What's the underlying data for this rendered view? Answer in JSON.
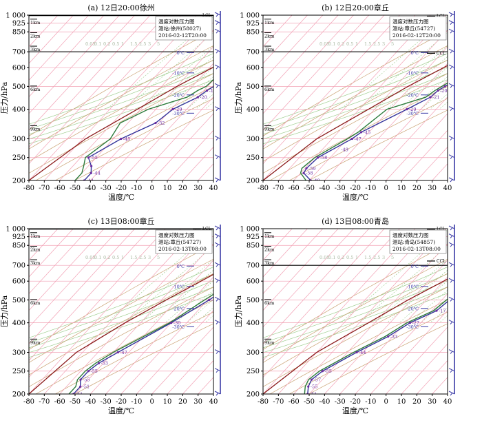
{
  "figure": {
    "ylabel": "压力/hPa",
    "xlabel": "温度/℃"
  },
  "axes": {
    "x_ticks": [
      -80,
      -70,
      -60,
      -50,
      -40,
      -30,
      -20,
      -10,
      0,
      10,
      20,
      30,
      40
    ],
    "y_ticks": [
      200,
      250,
      300,
      400,
      500,
      600,
      700,
      850,
      925,
      1000
    ],
    "y_tick_labels": [
      "200",
      "250",
      "300",
      "400",
      "500",
      "600",
      "700",
      "850",
      "925",
      "1 000"
    ],
    "xlim": [
      -80,
      40
    ],
    "ylim": [
      1000,
      200
    ],
    "y_scale": "log",
    "grid": true,
    "height_marks": [
      {
        "label": "9km",
        "p": 330
      },
      {
        "label": "6km",
        "p": 485
      },
      {
        "label": "3km",
        "p": 715
      },
      {
        "label": "2km",
        "p": 815
      },
      {
        "label": "1km",
        "p": 930
      }
    ],
    "isotherm_marks": [
      {
        "label": "-30℃",
        "p": 385
      },
      {
        "label": "-20℃",
        "p": 460
      },
      {
        "label": "-10℃",
        "p": 570
      },
      {
        "label": "0℃",
        "p": 695
      }
    ],
    "mixing_ratio_labels": [
      "0.05",
      "0.1",
      "0.2",
      "0.5",
      "1",
      "1.5",
      "2.5",
      "3",
      "5"
    ],
    "colors": {
      "isobar": "#f2a0b4",
      "isotherm": "#f2a0b4",
      "dry_adiabat": "#c9a071",
      "moist_adiabat": "#9ccc8c",
      "mixing_ratio": "#9ccc8c",
      "temperature": "#33339a",
      "dewpoint": "#2b7a3a",
      "parcel": "#8b1a1a",
      "wind": "#3a3aa6",
      "marker": "#6a2aa0",
      "band": "#fbd3da"
    }
  },
  "chart_data": [
    {
      "id": "a",
      "type": "line",
      "title": "(a) 12日20:00徐州",
      "legend_lines": [
        "温度对数压力图",
        "测站:徐州(58027)",
        "2016-02-12T20:00"
      ],
      "bands": [
        [
          410,
          520
        ],
        [
          580,
          940
        ]
      ],
      "line_pressures": [
        700,
        995
      ],
      "ccl_p": 980,
      "lcl_p": 998,
      "temperature": {
        "p": [
          995,
          980,
          925,
          850,
          700,
          600,
          560,
          500,
          480,
          450,
          400,
          350,
          300,
          250,
          230,
          215,
          200
        ],
        "t": [
          8,
          12,
          13,
          10,
          -1,
          -8,
          -10,
          -16,
          -18,
          -20,
          -29,
          -32,
          -45,
          -55,
          -48,
          -44,
          -44
        ]
      },
      "dewpoint": {
        "p": [
          995,
          980,
          925,
          850,
          700,
          600,
          560,
          500,
          480,
          450,
          400,
          350,
          300,
          250,
          230,
          215,
          200
        ],
        "td": [
          7,
          8,
          10,
          7,
          -4,
          -12,
          -20,
          -21,
          -24,
          -27,
          -45,
          -55,
          -52,
          -57,
          -53,
          -50,
          -50
        ]
      },
      "t_labels": [
        {
          "p": 995,
          "v": "8"
        },
        {
          "p": 980,
          "v": "12"
        },
        {
          "p": 925,
          "v": "13"
        },
        {
          "p": 850,
          "v": "10"
        },
        {
          "p": 700,
          "v": "-1"
        },
        {
          "p": 560,
          "v": "-10"
        },
        {
          "p": 500,
          "v": "-16"
        },
        {
          "p": 480,
          "v": "-18"
        },
        {
          "p": 450,
          "v": "-20"
        },
        {
          "p": 400,
          "v": "-29"
        },
        {
          "p": 350,
          "v": "-32"
        },
        {
          "p": 300,
          "v": "-45"
        },
        {
          "p": 250,
          "v": "-55"
        },
        {
          "p": 215,
          "v": "-44"
        },
        {
          "p": 200,
          "v": "-44"
        }
      ],
      "parcel": {
        "p": [
          1000,
          850,
          700,
          500,
          400,
          300,
          200
        ],
        "t": [
          10,
          -4,
          -18,
          -40,
          -52,
          -68,
          -80
        ]
      }
    },
    {
      "id": "b",
      "type": "line",
      "title": "(b) 12日20:00章丘",
      "legend_lines": [
        "温度对数压力图",
        "测站:章丘(54727)",
        "2016-02-12T20:00"
      ],
      "bands": [
        [
          470,
          560
        ]
      ],
      "line_pressures": [
        700
      ],
      "ccl_p": 690,
      "lcl_p": 990,
      "temperature": {
        "p": [
          1000,
          975,
          950,
          925,
          850,
          700,
          550,
          500,
          480,
          450,
          400,
          320,
          300,
          250,
          225,
          215,
          200
        ],
        "t": [
          7,
          9,
          10,
          10,
          6,
          1,
          -13,
          -18,
          -20,
          -21,
          -29,
          -45,
          -47,
          -58,
          -59,
          -58,
          -49
        ]
      },
      "dewpoint": {
        "p": [
          1000,
          975,
          950,
          925,
          850,
          700,
          550,
          500,
          480,
          450,
          400,
          320,
          300,
          250,
          225,
          215,
          200
        ],
        "td": [
          5,
          7,
          9,
          8,
          3,
          -3,
          -15,
          -20,
          -22,
          -24,
          -42,
          -47,
          -50,
          -60,
          -62,
          -60,
          -52
        ]
      },
      "t_labels": [
        {
          "p": 1000,
          "v": "7"
        },
        {
          "p": 975,
          "v": "9"
        },
        {
          "p": 950,
          "v": "10"
        },
        {
          "p": 925,
          "v": "10"
        },
        {
          "p": 850,
          "v": "6"
        },
        {
          "p": 700,
          "v": "1"
        },
        {
          "p": 550,
          "v": "-13"
        },
        {
          "p": 500,
          "v": "-18"
        },
        {
          "p": 480,
          "v": "-20"
        },
        {
          "p": 450,
          "v": "-21"
        },
        {
          "p": 400,
          "v": "-29"
        },
        {
          "p": 320,
          "v": "-45"
        },
        {
          "p": 300,
          "v": "-47"
        },
        {
          "p": 270,
          "v": "-49"
        },
        {
          "p": 250,
          "v": "-58"
        },
        {
          "p": 225,
          "v": "-59"
        },
        {
          "p": 215,
          "v": "-58"
        },
        {
          "p": 200,
          "v": "-49"
        }
      ],
      "parcel": {
        "p": [
          1000,
          850,
          700,
          500,
          400,
          300,
          200
        ],
        "t": [
          8,
          -6,
          -20,
          -42,
          -54,
          -70,
          -80
        ]
      }
    },
    {
      "id": "c",
      "type": "line",
      "title": "(c) 13日08:00章丘",
      "legend_lines": [
        "温度对数压力图",
        "测站:章丘(54727)",
        "2016-02-13T08:00"
      ],
      "bands": [],
      "line_pressures": [
        995
      ],
      "ccl_p": 985,
      "lcl_p": 1000,
      "temperature": {
        "p": [
          1000,
          975,
          950,
          925,
          900,
          850,
          700,
          600,
          500,
          400,
          300,
          270,
          250,
          230,
          215,
          200
        ],
        "t": [
          1,
          0,
          -3,
          -5,
          -3,
          0,
          -1,
          -12,
          -19,
          -30,
          -47,
          -53,
          -55,
          -55,
          -51,
          -51
        ]
      },
      "dewpoint": {
        "p": [
          1000,
          975,
          950,
          925,
          900,
          850,
          700,
          600,
          500,
          400,
          300,
          270,
          250,
          230,
          215,
          200
        ],
        "td": [
          0,
          -1,
          -4,
          -6,
          -5,
          -2,
          -3,
          -14,
          -22,
          -31,
          -50,
          -55,
          -57,
          -57,
          -54,
          -54
        ]
      },
      "t_labels": [
        {
          "p": 1000,
          "v": "1"
        },
        {
          "p": 950,
          "v": "-3"
        },
        {
          "p": 925,
          "v": "-5"
        },
        {
          "p": 850,
          "v": "0"
        },
        {
          "p": 700,
          "v": "-1"
        },
        {
          "p": 600,
          "v": "-12"
        },
        {
          "p": 500,
          "v": "-19"
        },
        {
          "p": 400,
          "v": "-30"
        },
        {
          "p": 300,
          "v": "-47"
        },
        {
          "p": 270,
          "v": "-53"
        },
        {
          "p": 250,
          "v": "-55"
        },
        {
          "p": 230,
          "v": "-55"
        },
        {
          "p": 215,
          "v": "-51"
        },
        {
          "p": 200,
          "v": "-51"
        }
      ],
      "parcel": {
        "p": [
          1000,
          850,
          700,
          500,
          400,
          300,
          200
        ],
        "t": [
          2,
          -11,
          -26,
          -47,
          -60,
          -74,
          -80
        ]
      }
    },
    {
      "id": "d",
      "type": "line",
      "title": "(d) 13日08:00青岛",
      "legend_lines": [
        "温度对数压力图",
        "测站:青岛(54857)",
        "2016-02-13T08:00"
      ],
      "bands": [
        [
          400,
          520
        ]
      ],
      "line_pressures": [
        700
      ],
      "ccl_p": 730,
      "lcl_p": 995,
      "temperature": {
        "p": [
          995,
          975,
          925,
          850,
          700,
          600,
          500,
          450,
          400,
          350,
          300,
          250,
          230,
          215,
          200
        ],
        "t": [
          7,
          9,
          9,
          6,
          0,
          -9,
          -15,
          -17,
          -27,
          -33,
          -44,
          -55,
          -57,
          -55,
          -51
        ]
      },
      "dewpoint": {
        "p": [
          995,
          975,
          925,
          850,
          700,
          600,
          500,
          450,
          400,
          350,
          300,
          250,
          230,
          215,
          200
        ],
        "td": [
          6,
          7,
          7,
          3,
          -2,
          -10,
          -17,
          -19,
          -29,
          -35,
          -46,
          -57,
          -59,
          -57,
          -53
        ]
      },
      "t_labels": [
        {
          "p": 995,
          "v": "7"
        },
        {
          "p": 975,
          "v": "9"
        },
        {
          "p": 925,
          "v": "9"
        },
        {
          "p": 850,
          "v": "6"
        },
        {
          "p": 700,
          "v": "0"
        },
        {
          "p": 600,
          "v": "-9"
        },
        {
          "p": 500,
          "v": "-15"
        },
        {
          "p": 450,
          "v": "-17"
        },
        {
          "p": 400,
          "v": "-27"
        },
        {
          "p": 350,
          "v": "-33"
        },
        {
          "p": 300,
          "v": "-44"
        },
        {
          "p": 250,
          "v": "-55"
        },
        {
          "p": 230,
          "v": "-57"
        },
        {
          "p": 215,
          "v": "-55"
        },
        {
          "p": 200,
          "v": "-51"
        }
      ],
      "parcel": {
        "p": [
          1000,
          850,
          700,
          500,
          400,
          300,
          200
        ],
        "t": [
          8,
          -6,
          -20,
          -42,
          -54,
          -70,
          -80
        ]
      }
    }
  ]
}
